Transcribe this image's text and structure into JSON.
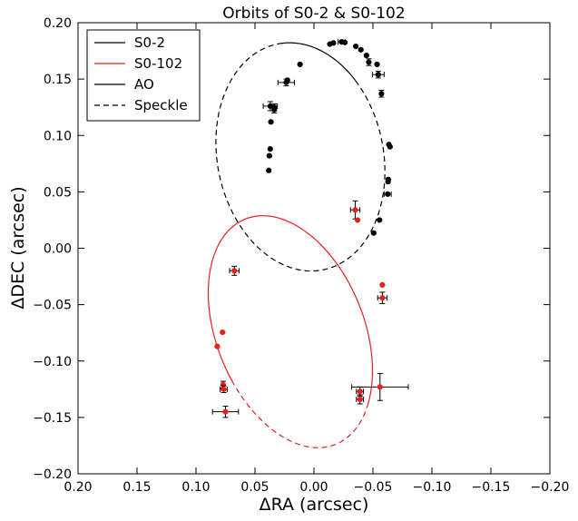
{
  "chart_data": {
    "type": "scatter",
    "title": "Orbits of S0-2 & S0-102",
    "xlabel": "ΔRA (arcsec)",
    "ylabel": "ΔDEC (arcsec)",
    "xlim": [
      0.2,
      -0.2
    ],
    "ylim": [
      -0.2,
      0.2
    ],
    "x_ticks": [
      0.2,
      0.15,
      0.1,
      0.05,
      0.0,
      -0.05,
      -0.1,
      -0.15,
      -0.2
    ],
    "x_tick_labels": [
      "0.20",
      "0.15",
      "0.10",
      "0.05",
      "0.00",
      "−0.05",
      "−0.10",
      "−0.15",
      "−0.20"
    ],
    "y_ticks": [
      0.2,
      0.15,
      0.1,
      0.05,
      0.0,
      -0.05,
      -0.1,
      -0.15,
      -0.2
    ],
    "y_tick_labels": [
      "0.20",
      "0.15",
      "0.10",
      "0.05",
      "0.00",
      "−0.05",
      "−0.10",
      "−0.15",
      "−0.20"
    ],
    "grid": false,
    "legend_position": "top-left",
    "legend": [
      {
        "label": "S0-2",
        "color": "#000000",
        "style": "solid"
      },
      {
        "label": "S0-102",
        "color": "#e8201f",
        "style": "solid"
      },
      {
        "label": "AO",
        "color": "#000000",
        "style": "solid"
      },
      {
        "label": "Speckle",
        "color": "#000000",
        "style": "dashed"
      }
    ],
    "orbits": [
      {
        "name": "S0-2",
        "color": "#000000",
        "center": [
          0.0115,
          0.081
        ],
        "semi_axes": [
          0.0705,
          0.102
        ],
        "rotation_deg": -10,
        "speckle_arc_deg": [
          -215,
          90
        ]
      },
      {
        "name": "S0-102",
        "color": "#e8201f",
        "center": [
          0.02,
          -0.074
        ],
        "semi_axes": [
          0.063,
          0.107
        ],
        "rotation_deg": -20,
        "speckle_arc_deg": [
          230,
          345
        ]
      }
    ],
    "series": [
      {
        "name": "S0-2",
        "color": "#000000",
        "points": [
          {
            "x": 0.0383,
            "y": 0.069,
            "xerr": 0.002,
            "yerr": 0.002
          },
          {
            "x": 0.0378,
            "y": 0.082,
            "xerr": 0.002,
            "yerr": 0.002
          },
          {
            "x": 0.0371,
            "y": 0.088,
            "xerr": 0.002,
            "yerr": 0.002
          },
          {
            "x": 0.0365,
            "y": 0.112,
            "xerr": 0.002,
            "yerr": 0.002
          },
          {
            "x": 0.0337,
            "y": 0.123,
            "xerr": 0.002,
            "yerr": 0.003
          },
          {
            "x": 0.0335,
            "y": 0.125,
            "xerr": 0.002,
            "yerr": 0.003
          },
          {
            "x": 0.037,
            "y": 0.126,
            "xerr": 0.006,
            "yerr": 0.004
          },
          {
            "x": 0.0235,
            "y": 0.147,
            "xerr": 0.007,
            "yerr": 0.003
          },
          {
            "x": 0.0225,
            "y": 0.149,
            "xerr": 0.002,
            "yerr": 0.002
          },
          {
            "x": 0.0118,
            "y": 0.163,
            "xerr": 0.002,
            "yerr": 0.002
          },
          {
            "x": -0.0135,
            "y": 0.181,
            "xerr": 0.002,
            "yerr": 0.002
          },
          {
            "x": -0.0165,
            "y": 0.182,
            "xerr": 0.002,
            "yerr": 0.002
          },
          {
            "x": -0.0235,
            "y": 0.183,
            "xerr": 0.003,
            "yerr": 0.002
          },
          {
            "x": -0.0262,
            "y": 0.1825,
            "xerr": 0.002,
            "yerr": 0.002
          },
          {
            "x": -0.0355,
            "y": 0.179,
            "xerr": 0.002,
            "yerr": 0.002
          },
          {
            "x": -0.0398,
            "y": 0.176,
            "xerr": 0.002,
            "yerr": 0.002
          },
          {
            "x": -0.0445,
            "y": 0.171,
            "xerr": 0.002,
            "yerr": 0.002
          },
          {
            "x": -0.0465,
            "y": 0.165,
            "xerr": 0.002,
            "yerr": 0.003
          },
          {
            "x": -0.0535,
            "y": 0.163,
            "xerr": 0.002,
            "yerr": 0.002
          },
          {
            "x": -0.0545,
            "y": 0.154,
            "xerr": 0.005,
            "yerr": 0.003
          },
          {
            "x": -0.0572,
            "y": 0.137,
            "xerr": 0.002,
            "yerr": 0.003
          },
          {
            "x": -0.0635,
            "y": 0.092,
            "xerr": 0.002,
            "yerr": 0.002
          },
          {
            "x": -0.0645,
            "y": 0.09,
            "xerr": 0.002,
            "yerr": 0.002
          },
          {
            "x": -0.063,
            "y": 0.061,
            "xerr": 0.002,
            "yerr": 0.002
          },
          {
            "x": -0.0628,
            "y": 0.059,
            "xerr": 0.002,
            "yerr": 0.002
          },
          {
            "x": -0.0625,
            "y": 0.048,
            "xerr": 0.003,
            "yerr": 0.002
          },
          {
            "x": -0.0556,
            "y": 0.025,
            "xerr": 0.002,
            "yerr": 0.002
          },
          {
            "x": -0.0506,
            "y": 0.0135,
            "xerr": 0.002,
            "yerr": 0.002
          }
        ]
      },
      {
        "name": "S0-102",
        "color": "#e8201f",
        "points": [
          {
            "x": -0.035,
            "y": 0.034,
            "xerr": 0.004,
            "yerr": 0.008
          },
          {
            "x": -0.037,
            "y": 0.025,
            "xerr": 0.002,
            "yerr": 0.002
          },
          {
            "x": 0.0675,
            "y": -0.02,
            "xerr": 0.004,
            "yerr": 0.004
          },
          {
            "x": -0.058,
            "y": -0.0325,
            "xerr": 0.002,
            "yerr": 0.002
          },
          {
            "x": -0.058,
            "y": -0.044,
            "xerr": 0.004,
            "yerr": 0.005
          },
          {
            "x": 0.0775,
            "y": -0.0745,
            "xerr": 0.002,
            "yerr": 0.002
          },
          {
            "x": 0.082,
            "y": -0.087,
            "xerr": 0.002,
            "yerr": 0.002
          },
          {
            "x": 0.077,
            "y": -0.121,
            "xerr": 0.002,
            "yerr": 0.003
          },
          {
            "x": 0.0765,
            "y": -0.125,
            "xerr": 0.003,
            "yerr": 0.003
          },
          {
            "x": -0.039,
            "y": -0.127,
            "xerr": 0.003,
            "yerr": 0.004
          },
          {
            "x": -0.039,
            "y": -0.134,
            "xerr": 0.003,
            "yerr": 0.004
          },
          {
            "x": -0.056,
            "y": -0.123,
            "xerr": 0.024,
            "yerr": 0.012
          },
          {
            "x": 0.075,
            "y": -0.145,
            "xerr": 0.011,
            "yerr": 0.005
          }
        ]
      }
    ]
  }
}
